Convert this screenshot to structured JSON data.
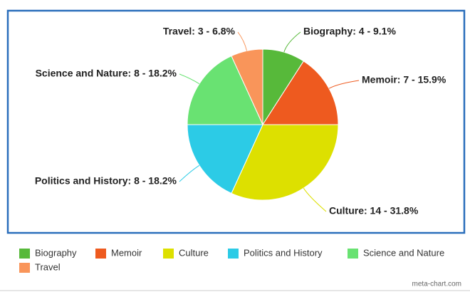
{
  "chart_data": {
    "type": "pie",
    "categories": [
      "Biography",
      "Memoir",
      "Culture",
      "Politics and History",
      "Science and Nature",
      "Travel"
    ],
    "values": [
      4,
      7,
      14,
      8,
      8,
      3
    ],
    "value_labels": [
      "Biography: 4 - 9.1%",
      "Memoir: 7 - 15.9%",
      "Culture: 14 - 31.8%",
      "Politics and History: 8 - 18.2%",
      "Science and Nature: 8 - 18.2%",
      "Travel: 3 - 6.8%"
    ],
    "colors": [
      "#57b93a",
      "#ee5a1f",
      "#dde000",
      "#2ccbe6",
      "#69e272",
      "#f9955a"
    ],
    "legend": "bottom",
    "credit": "meta-chart.com"
  }
}
